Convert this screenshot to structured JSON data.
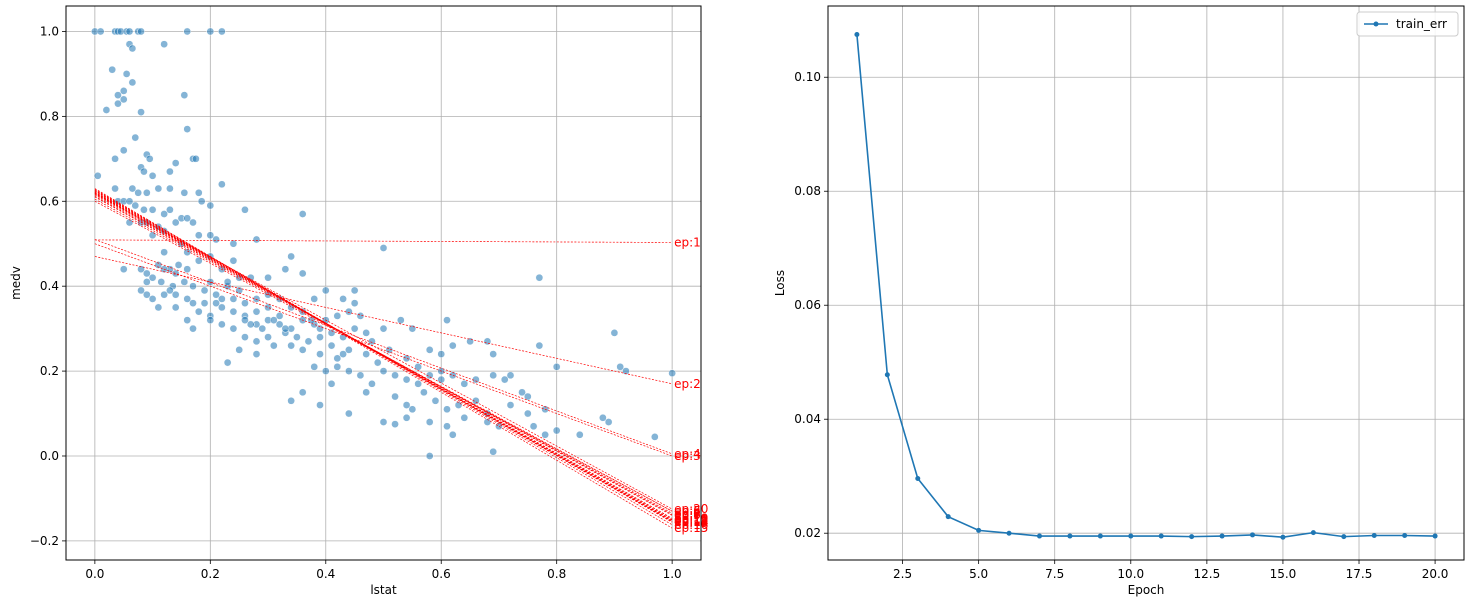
{
  "chart_data": [
    {
      "type": "scatter",
      "xlabel": "lstat",
      "ylabel": "medv",
      "xlim": [
        -0.05,
        1.05
      ],
      "ylim": [
        -0.245,
        1.06
      ],
      "xticks": [
        0.0,
        0.2,
        0.4,
        0.6,
        0.8,
        1.0
      ],
      "xtick_labels": [
        "0.0",
        "0.2",
        "0.4",
        "0.6",
        "0.8",
        "1.0"
      ],
      "yticks": [
        -0.2,
        0.0,
        0.2,
        0.4,
        0.6,
        0.8,
        1.0
      ],
      "ytick_labels": [
        "−0.2",
        "0.0",
        "0.2",
        "0.4",
        "0.6",
        "0.8",
        "1.0"
      ],
      "grid": true,
      "colors": {
        "points": "#1f77b4",
        "fits": "#ff0000"
      },
      "points": [
        [
          0.0,
          1.0
        ],
        [
          0.01,
          1.0
        ],
        [
          0.035,
          1.0
        ],
        [
          0.04,
          1.0
        ],
        [
          0.045,
          1.0
        ],
        [
          0.055,
          1.0
        ],
        [
          0.06,
          1.0
        ],
        [
          0.075,
          1.0
        ],
        [
          0.08,
          1.0
        ],
        [
          0.16,
          1.0
        ],
        [
          0.2,
          1.0
        ],
        [
          0.22,
          1.0
        ],
        [
          0.06,
          0.97
        ],
        [
          0.065,
          0.96
        ],
        [
          0.12,
          0.97
        ],
        [
          0.03,
          0.91
        ],
        [
          0.055,
          0.9
        ],
        [
          0.065,
          0.88
        ],
        [
          0.04,
          0.85
        ],
        [
          0.05,
          0.86
        ],
        [
          0.04,
          0.83
        ],
        [
          0.02,
          0.815
        ],
        [
          0.08,
          0.81
        ],
        [
          0.155,
          0.85
        ],
        [
          0.05,
          0.84
        ],
        [
          0.16,
          0.77
        ],
        [
          0.07,
          0.75
        ],
        [
          0.09,
          0.71
        ],
        [
          0.095,
          0.7
        ],
        [
          0.17,
          0.7
        ],
        [
          0.175,
          0.7
        ],
        [
          0.035,
          0.7
        ],
        [
          0.05,
          0.72
        ],
        [
          0.08,
          0.68
        ],
        [
          0.085,
          0.67
        ],
        [
          0.14,
          0.69
        ],
        [
          0.1,
          0.66
        ],
        [
          0.005,
          0.66
        ],
        [
          0.13,
          0.67
        ],
        [
          0.065,
          0.63
        ],
        [
          0.075,
          0.62
        ],
        [
          0.09,
          0.62
        ],
        [
          0.11,
          0.63
        ],
        [
          0.13,
          0.63
        ],
        [
          0.155,
          0.62
        ],
        [
          0.18,
          0.62
        ],
        [
          0.22,
          0.64
        ],
        [
          0.035,
          0.63
        ],
        [
          0.04,
          0.6
        ],
        [
          0.05,
          0.6
        ],
        [
          0.06,
          0.6
        ],
        [
          0.07,
          0.59
        ],
        [
          0.085,
          0.58
        ],
        [
          0.1,
          0.58
        ],
        [
          0.12,
          0.57
        ],
        [
          0.13,
          0.58
        ],
        [
          0.15,
          0.56
        ],
        [
          0.16,
          0.56
        ],
        [
          0.185,
          0.6
        ],
        [
          0.2,
          0.59
        ],
        [
          0.26,
          0.58
        ],
        [
          0.36,
          0.57
        ],
        [
          0.08,
          0.55
        ],
        [
          0.09,
          0.55
        ],
        [
          0.11,
          0.54
        ],
        [
          0.12,
          0.53
        ],
        [
          0.14,
          0.55
        ],
        [
          0.17,
          0.55
        ],
        [
          0.06,
          0.55
        ],
        [
          0.1,
          0.52
        ],
        [
          0.15,
          0.5
        ],
        [
          0.18,
          0.52
        ],
        [
          0.2,
          0.52
        ],
        [
          0.21,
          0.51
        ],
        [
          0.24,
          0.5
        ],
        [
          0.28,
          0.51
        ],
        [
          0.05,
          0.44
        ],
        [
          0.08,
          0.44
        ],
        [
          0.09,
          0.43
        ],
        [
          0.11,
          0.45
        ],
        [
          0.13,
          0.44
        ],
        [
          0.145,
          0.45
        ],
        [
          0.16,
          0.44
        ],
        [
          0.12,
          0.48
        ],
        [
          0.16,
          0.48
        ],
        [
          0.18,
          0.46
        ],
        [
          0.2,
          0.47
        ],
        [
          0.24,
          0.46
        ],
        [
          0.22,
          0.44
        ],
        [
          0.09,
          0.41
        ],
        [
          0.1,
          0.42
        ],
        [
          0.115,
          0.41
        ],
        [
          0.135,
          0.4
        ],
        [
          0.155,
          0.41
        ],
        [
          0.17,
          0.4
        ],
        [
          0.2,
          0.41
        ],
        [
          0.23,
          0.4
        ],
        [
          0.25,
          0.42
        ],
        [
          0.27,
          0.42
        ],
        [
          0.3,
          0.42
        ],
        [
          0.33,
          0.44
        ],
        [
          0.34,
          0.47
        ],
        [
          0.36,
          0.43
        ],
        [
          0.08,
          0.39
        ],
        [
          0.09,
          0.38
        ],
        [
          0.1,
          0.37
        ],
        [
          0.12,
          0.38
        ],
        [
          0.13,
          0.39
        ],
        [
          0.14,
          0.38
        ],
        [
          0.16,
          0.37
        ],
        [
          0.17,
          0.36
        ],
        [
          0.19,
          0.36
        ],
        [
          0.21,
          0.36
        ],
        [
          0.22,
          0.37
        ],
        [
          0.24,
          0.37
        ],
        [
          0.26,
          0.36
        ],
        [
          0.28,
          0.37
        ],
        [
          0.3,
          0.38
        ],
        [
          0.32,
          0.37
        ],
        [
          0.11,
          0.35
        ],
        [
          0.14,
          0.35
        ],
        [
          0.18,
          0.34
        ],
        [
          0.2,
          0.33
        ],
        [
          0.22,
          0.35
        ],
        [
          0.24,
          0.34
        ],
        [
          0.26,
          0.33
        ],
        [
          0.28,
          0.34
        ],
        [
          0.3,
          0.35
        ],
        [
          0.32,
          0.33
        ],
        [
          0.34,
          0.35
        ],
        [
          0.36,
          0.34
        ],
        [
          0.38,
          0.37
        ],
        [
          0.4,
          0.39
        ],
        [
          0.43,
          0.37
        ],
        [
          0.45,
          0.39
        ],
        [
          0.16,
          0.32
        ],
        [
          0.17,
          0.3
        ],
        [
          0.2,
          0.32
        ],
        [
          0.22,
          0.31
        ],
        [
          0.24,
          0.3
        ],
        [
          0.26,
          0.32
        ],
        [
          0.28,
          0.31
        ],
        [
          0.3,
          0.32
        ],
        [
          0.32,
          0.31
        ],
        [
          0.34,
          0.3
        ],
        [
          0.36,
          0.32
        ],
        [
          0.38,
          0.31
        ],
        [
          0.4,
          0.32
        ],
        [
          0.42,
          0.33
        ],
        [
          0.44,
          0.34
        ],
        [
          0.46,
          0.33
        ],
        [
          0.26,
          0.28
        ],
        [
          0.28,
          0.27
        ],
        [
          0.3,
          0.28
        ],
        [
          0.33,
          0.29
        ],
        [
          0.35,
          0.28
        ],
        [
          0.37,
          0.27
        ],
        [
          0.39,
          0.28
        ],
        [
          0.41,
          0.29
        ],
        [
          0.43,
          0.28
        ],
        [
          0.45,
          0.3
        ],
        [
          0.47,
          0.29
        ],
        [
          0.5,
          0.3
        ],
        [
          0.53,
          0.32
        ],
        [
          0.55,
          0.3
        ],
        [
          0.48,
          0.27
        ],
        [
          0.25,
          0.25
        ],
        [
          0.28,
          0.24
        ],
        [
          0.31,
          0.26
        ],
        [
          0.34,
          0.26
        ],
        [
          0.36,
          0.25
        ],
        [
          0.39,
          0.24
        ],
        [
          0.42,
          0.23
        ],
        [
          0.44,
          0.25
        ],
        [
          0.47,
          0.24
        ],
        [
          0.49,
          0.22
        ],
        [
          0.51,
          0.25
        ],
        [
          0.54,
          0.23
        ],
        [
          0.56,
          0.21
        ],
        [
          0.58,
          0.25
        ],
        [
          0.6,
          0.24
        ],
        [
          0.62,
          0.26
        ],
        [
          0.65,
          0.27
        ],
        [
          0.68,
          0.27
        ],
        [
          0.23,
          0.22
        ],
        [
          0.38,
          0.21
        ],
        [
          0.4,
          0.2
        ],
        [
          0.42,
          0.21
        ],
        [
          0.44,
          0.2
        ],
        [
          0.46,
          0.19
        ],
        [
          0.48,
          0.17
        ],
        [
          0.5,
          0.2
        ],
        [
          0.52,
          0.19
        ],
        [
          0.54,
          0.18
        ],
        [
          0.56,
          0.17
        ],
        [
          0.58,
          0.19
        ],
        [
          0.6,
          0.18
        ],
        [
          0.62,
          0.19
        ],
        [
          0.64,
          0.17
        ],
        [
          0.66,
          0.18
        ],
        [
          0.69,
          0.19
        ],
        [
          0.71,
          0.18
        ],
        [
          0.6,
          0.2
        ],
        [
          0.36,
          0.15
        ],
        [
          0.34,
          0.13
        ],
        [
          0.39,
          0.12
        ],
        [
          0.41,
          0.17
        ],
        [
          0.44,
          0.1
        ],
        [
          0.47,
          0.15
        ],
        [
          0.52,
          0.14
        ],
        [
          0.54,
          0.12
        ],
        [
          0.57,
          0.15
        ],
        [
          0.59,
          0.13
        ],
        [
          0.61,
          0.11
        ],
        [
          0.63,
          0.12
        ],
        [
          0.66,
          0.13
        ],
        [
          0.68,
          0.1
        ],
        [
          0.72,
          0.12
        ],
        [
          0.75,
          0.1
        ],
        [
          0.78,
          0.11
        ],
        [
          0.55,
          0.11
        ],
        [
          0.5,
          0.08
        ],
        [
          0.52,
          0.075
        ],
        [
          0.54,
          0.09
        ],
        [
          0.58,
          0.08
        ],
        [
          0.61,
          0.07
        ],
        [
          0.64,
          0.09
        ],
        [
          0.68,
          0.08
        ],
        [
          0.7,
          0.07
        ],
        [
          0.76,
          0.07
        ],
        [
          0.8,
          0.06
        ],
        [
          0.89,
          0.08
        ],
        [
          0.62,
          0.05
        ],
        [
          0.69,
          0.01
        ],
        [
          0.84,
          0.05
        ],
        [
          0.78,
          0.05
        ],
        [
          0.58,
          0.0
        ],
        [
          0.74,
          0.15
        ],
        [
          0.75,
          0.14
        ],
        [
          0.72,
          0.19
        ],
        [
          0.77,
          0.26
        ],
        [
          0.9,
          0.29
        ],
        [
          0.91,
          0.21
        ],
        [
          0.92,
          0.2
        ],
        [
          0.97,
          0.045
        ],
        [
          1.0,
          0.195
        ],
        [
          0.8,
          0.21
        ],
        [
          0.77,
          0.42
        ],
        [
          0.61,
          0.32
        ],
        [
          0.69,
          0.24
        ],
        [
          0.88,
          0.09
        ],
        [
          0.375,
          0.32
        ],
        [
          0.39,
          0.3
        ],
        [
          0.41,
          0.26
        ],
        [
          0.43,
          0.24
        ],
        [
          0.5,
          0.49
        ],
        [
          0.45,
          0.36
        ],
        [
          0.33,
          0.3
        ],
        [
          0.31,
          0.32
        ],
        [
          0.29,
          0.3
        ],
        [
          0.27,
          0.31
        ],
        [
          0.25,
          0.39
        ],
        [
          0.23,
          0.41
        ],
        [
          0.12,
          0.44
        ],
        [
          0.14,
          0.43
        ],
        [
          0.19,
          0.39
        ],
        [
          0.21,
          0.38
        ]
      ],
      "lines": [
        {
          "label": "ep:1",
          "b": 0.509,
          "m": -0.006
        },
        {
          "label": "ep:2",
          "b": 0.47,
          "m": -0.3
        },
        {
          "label": "ep:3",
          "b": 0.5,
          "m": -0.5
        },
        {
          "label": "ep:4",
          "b": 0.51,
          "m": -0.505
        },
        {
          "label": "ep:5",
          "b": 0.6,
          "m": -0.73
        },
        {
          "label": "ep:6",
          "b": 0.605,
          "m": -0.735
        },
        {
          "label": "ep:7",
          "b": 0.61,
          "m": -0.745
        },
        {
          "label": "ep:8",
          "b": 0.612,
          "m": -0.75
        },
        {
          "label": "ep:9",
          "b": 0.615,
          "m": -0.755
        },
        {
          "label": "ep:10",
          "b": 0.618,
          "m": -0.765
        },
        {
          "label": "ep:11",
          "b": 0.62,
          "m": -0.77
        },
        {
          "label": "ep:12",
          "b": 0.622,
          "m": -0.775
        },
        {
          "label": "ep:13",
          "b": 0.625,
          "m": -0.78
        },
        {
          "label": "ep:14",
          "b": 0.626,
          "m": -0.782
        },
        {
          "label": "ep:15",
          "b": 0.63,
          "m": -0.8
        },
        {
          "label": "ep:16",
          "b": 0.628,
          "m": -0.79
        },
        {
          "label": "ep:17",
          "b": 0.624,
          "m": -0.778
        },
        {
          "label": "ep:18",
          "b": 0.621,
          "m": -0.772
        },
        {
          "label": "ep:19",
          "b": 0.619,
          "m": -0.766
        },
        {
          "label": "ep:20",
          "b": 0.617,
          "m": -0.742
        }
      ]
    },
    {
      "type": "line",
      "xlabel": "Epoch",
      "ylabel": "Loss",
      "xlim": [
        0.05,
        20.95
      ],
      "ylim": [
        0.0153,
        0.1125
      ],
      "xticks": [
        2.5,
        5.0,
        7.5,
        10.0,
        12.5,
        15.0,
        17.5,
        20.0
      ],
      "xtick_labels": [
        "2.5",
        "5.0",
        "7.5",
        "10.0",
        "12.5",
        "15.0",
        "17.5",
        "20.0"
      ],
      "yticks": [
        0.02,
        0.04,
        0.06,
        0.08,
        0.1
      ],
      "ytick_labels": [
        "0.02",
        "0.04",
        "0.06",
        "0.08",
        "0.10"
      ],
      "grid": true,
      "legend_position": "top-right",
      "series": [
        {
          "name": "train_err",
          "color": "#1f77b4",
          "x": [
            1,
            2,
            3,
            4,
            5,
            6,
            7,
            8,
            9,
            10,
            11,
            12,
            13,
            14,
            15,
            16,
            17,
            18,
            19,
            20
          ],
          "y": [
            0.1075,
            0.0478,
            0.0296,
            0.0229,
            0.0205,
            0.02,
            0.0195,
            0.0195,
            0.0195,
            0.0195,
            0.0195,
            0.0194,
            0.0195,
            0.0197,
            0.0193,
            0.0201,
            0.0194,
            0.0196,
            0.0196,
            0.0195
          ]
        }
      ]
    }
  ]
}
